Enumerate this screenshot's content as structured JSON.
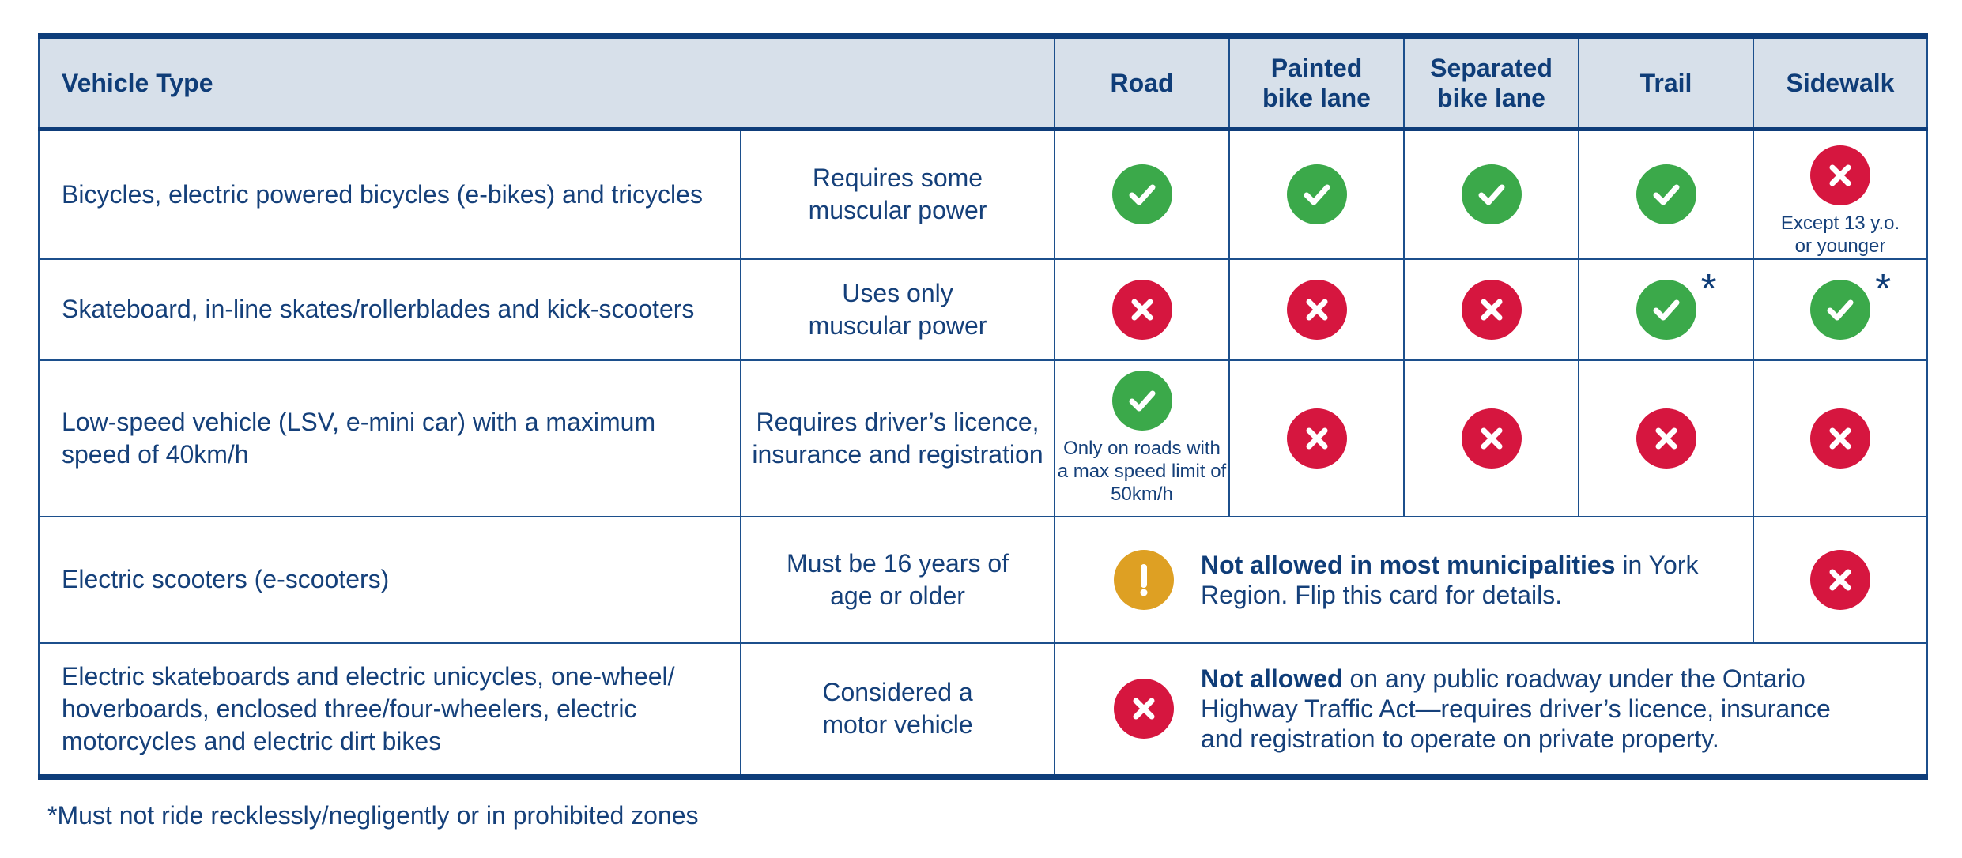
{
  "header": {
    "vehicle_type": "Vehicle Type",
    "road": "Road",
    "painted_bike_lane": "Painted bike lane",
    "separated_bike_lane": "Separated bike lane",
    "trail": "Trail",
    "sidewalk": "Sidewalk"
  },
  "rows": [
    {
      "vehicle": "Bicycles, electric powered bicycles (e-bikes) and tricycles",
      "requirement": "Requires some muscular power",
      "road": "allowed",
      "painted": "allowed",
      "separated": "allowed",
      "trail": "allowed",
      "sidewalk": "not-allowed",
      "sidewalk_note": "Except 13 y.o. or younger"
    },
    {
      "vehicle": "Skateboard, in-line skates/rollerblades and kick-scooters",
      "requirement": "Uses only muscular power",
      "road": "not-allowed",
      "painted": "not-allowed",
      "separated": "not-allowed",
      "trail": "allowed",
      "trail_mark": "*",
      "sidewalk": "allowed",
      "sidewalk_mark": "*"
    },
    {
      "vehicle": "Low-speed vehicle (LSV, e-mini car) with a maximum speed of 40km/h",
      "requirement": "Requires driver’s licence, insurance and registration",
      "road": "allowed",
      "road_note": "Only on roads with a max speed limit of 50km/h",
      "painted": "not-allowed",
      "separated": "not-allowed",
      "trail": "not-allowed",
      "sidewalk": "not-allowed"
    },
    {
      "vehicle": "Electric scooters (e-scooters)",
      "requirement": "Must be 16 years of age or older",
      "span_status": "warning",
      "span_bold": "Not allowed in most municipalities",
      "span_text": " in York Region. Flip this card for details.",
      "sidewalk": "not-allowed"
    },
    {
      "vehicle": "Electric skateboards and electric unicycles, one-wheel/ hoverboards, enclosed three/four-wheelers, electric motorcycles and electric dirt bikes",
      "requirement": "Considered a motor vehicle",
      "span_status": "not-allowed",
      "span_bold": "Not allowed",
      "span_text": " on any public roadway under the Ontario Highway Traffic Act—requires driver’s licence, insurance and registration to operate on private property."
    }
  ],
  "footnote": "*Must not ride recklessly/negligently or in prohibited zones",
  "colors": {
    "allowed": "#3ba94a",
    "not_allowed": "#d6163f",
    "warning": "#dea023",
    "header_bg": "#d7e0ea",
    "text": "#15407a"
  },
  "icons": {
    "allowed": "checkmark-icon",
    "not_allowed": "x-mark-icon",
    "warning": "exclamation-icon"
  }
}
